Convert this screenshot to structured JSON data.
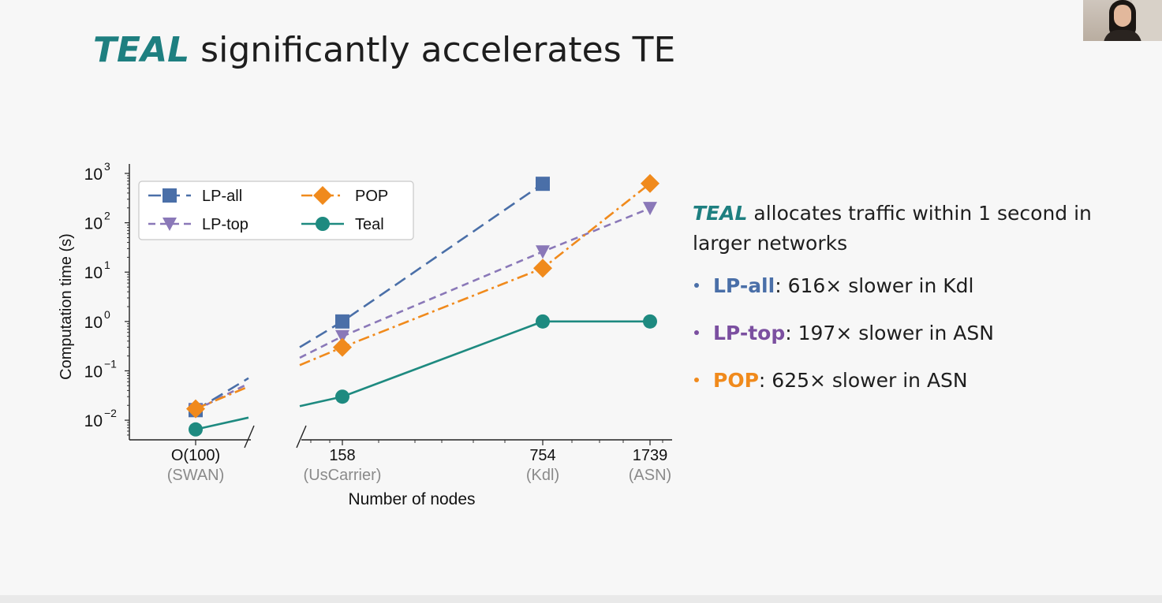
{
  "slide": {
    "title": {
      "brand": "TEAL",
      "rest": "significantly accelerates TE"
    },
    "panel": {
      "lead_brand": "TEAL",
      "lead_text": "allocates traffic within 1 second in larger networks",
      "bullets": [
        {
          "name": "LP-all",
          "sep": ":",
          "text": "616× slower in Kdl",
          "color": "#4a6fa8"
        },
        {
          "name": "LP-top",
          "sep": ":",
          "text": "197× slower in ASN",
          "color": "#7b4fa0"
        },
        {
          "name": "POP",
          "sep": ":",
          "text": "625× slower in ASN",
          "color": "#f08a1c"
        }
      ]
    }
  },
  "colors": {
    "brand_teal": "#1e7f80",
    "lp_all": "#4a6fa8",
    "lp_top": "#8a78b8",
    "pop": "#f08a1c",
    "teal": "#1e8a80"
  },
  "chart_data": {
    "type": "line",
    "xlabel": "Number of nodes",
    "ylabel": "Computation time (s)",
    "yscale": "log",
    "ylim": [
      0.004,
      1000
    ],
    "yticks": [
      {
        "value": 0.01,
        "base": "10",
        "exp": "−2"
      },
      {
        "value": 0.1,
        "base": "10",
        "exp": "−1"
      },
      {
        "value": 1,
        "base": "10",
        "exp": "0"
      },
      {
        "value": 10,
        "base": "10",
        "exp": "1"
      },
      {
        "value": 100,
        "base": "10",
        "exp": "2"
      },
      {
        "value": 1000,
        "base": "10",
        "exp": "3"
      }
    ],
    "categories": [
      {
        "label": "O(100)",
        "sublabel": "(SWAN)"
      },
      {
        "label": "158",
        "sublabel": "(UsCarrier)"
      },
      {
        "label": "754",
        "sublabel": "(Kdl)"
      },
      {
        "label": "1739",
        "sublabel": "(ASN)"
      }
    ],
    "broken_axis": true,
    "legend_position": "top-left",
    "series": [
      {
        "name": "LP-all",
        "marker": "square",
        "dash": "dashed",
        "color": "#4a6fa8",
        "values": [
          0.016,
          1.0,
          616,
          null
        ]
      },
      {
        "name": "LP-top",
        "marker": "triangle-down",
        "dash": "dotted-dashed",
        "color": "#8a78b8",
        "values": [
          0.016,
          0.5,
          26,
          197
        ]
      },
      {
        "name": "POP",
        "marker": "diamond",
        "dash": "dash-dot",
        "color": "#f08a1c",
        "values": [
          0.017,
          0.3,
          12,
          625
        ]
      },
      {
        "name": "Teal",
        "marker": "circle",
        "dash": "solid",
        "color": "#1e8a80",
        "values": [
          0.0065,
          0.03,
          1.0,
          1.0
        ]
      }
    ],
    "legend": {
      "columns": 2
    }
  }
}
